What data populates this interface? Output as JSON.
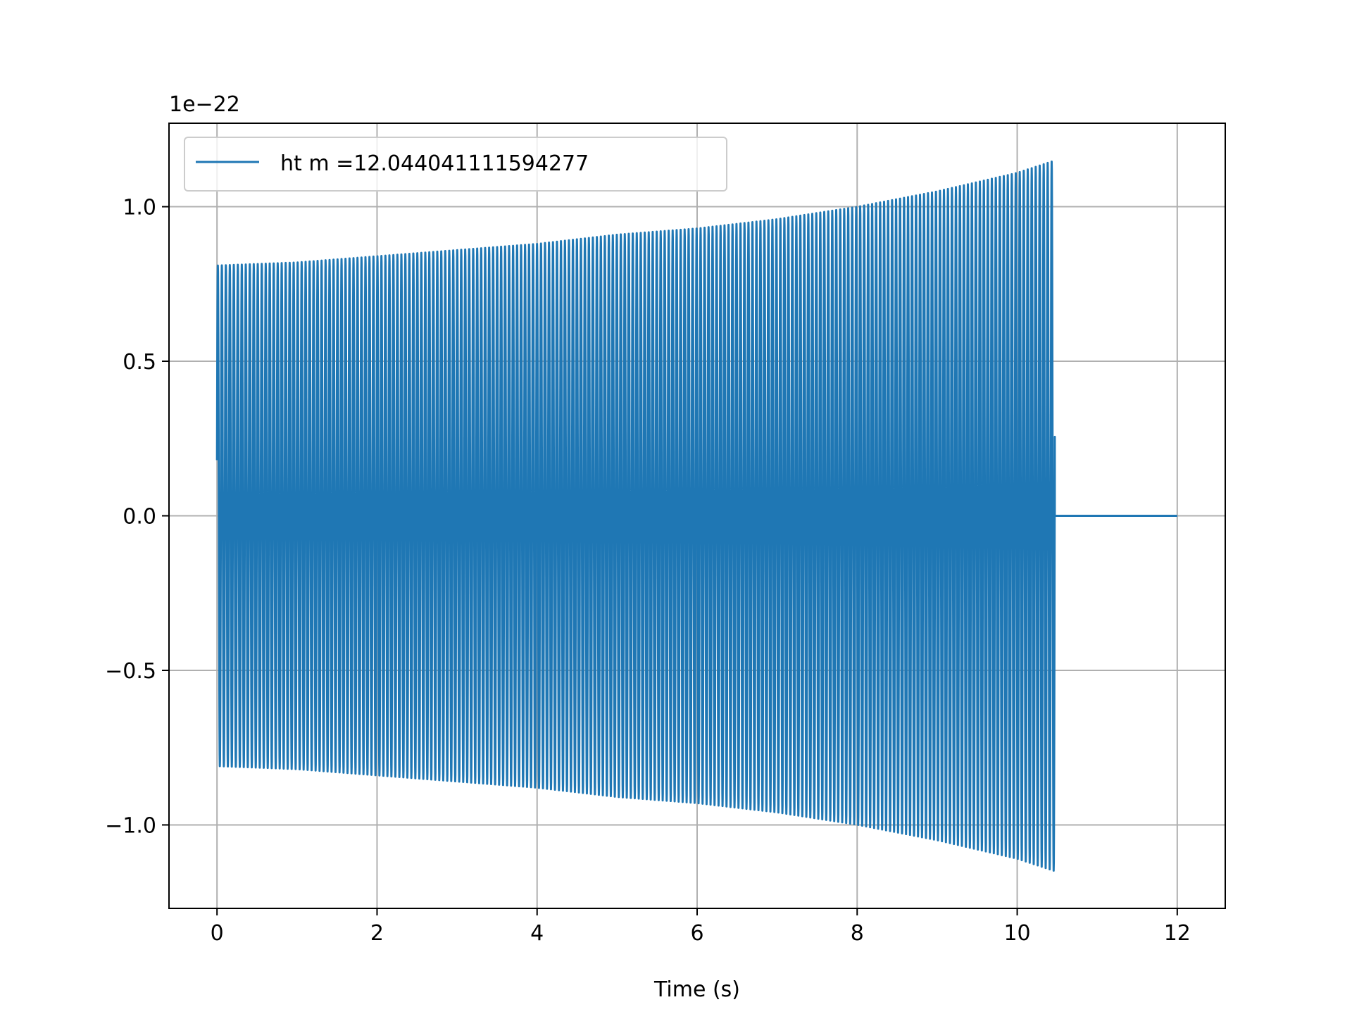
{
  "chart_data": {
    "type": "line",
    "xlabel": "Time (s)",
    "ylabel": "",
    "offset_text": "1e−22",
    "xlim": [
      -0.6,
      12.6
    ],
    "ylim": [
      -1.27,
      1.27
    ],
    "x_ticks": [
      0,
      2,
      4,
      6,
      8,
      10,
      12
    ],
    "x_tick_labels": [
      "0",
      "2",
      "4",
      "6",
      "8",
      "10",
      "12"
    ],
    "y_ticks": [
      -1.0,
      -0.5,
      0.0,
      0.5,
      1.0
    ],
    "y_tick_labels": [
      "−1.0",
      "−0.5",
      "0.0",
      "0.5",
      "1.0"
    ],
    "grid": true,
    "legend_position": "top-left",
    "series": [
      {
        "name": "ht m =12.044041111594277",
        "color": "#1f77b4",
        "description_envelope": {
          "t_start": 0.0,
          "t_end": 10.47,
          "t_final": 12.0,
          "start_value": 0.18,
          "amplitude_start": 0.81,
          "amplitude_end": 1.15,
          "after_end_value": 0.0,
          "amplitude_samples": [
            [
              0.0,
              0.81
            ],
            [
              1.0,
              0.82
            ],
            [
              2.0,
              0.84
            ],
            [
              3.0,
              0.86
            ],
            [
              4.0,
              0.88
            ],
            [
              5.0,
              0.91
            ],
            [
              6.0,
              0.93
            ],
            [
              7.0,
              0.96
            ],
            [
              8.0,
              1.0
            ],
            [
              9.0,
              1.05
            ],
            [
              10.0,
              1.11
            ],
            [
              10.47,
              1.15
            ]
          ],
          "cycles": 210
        }
      }
    ]
  }
}
